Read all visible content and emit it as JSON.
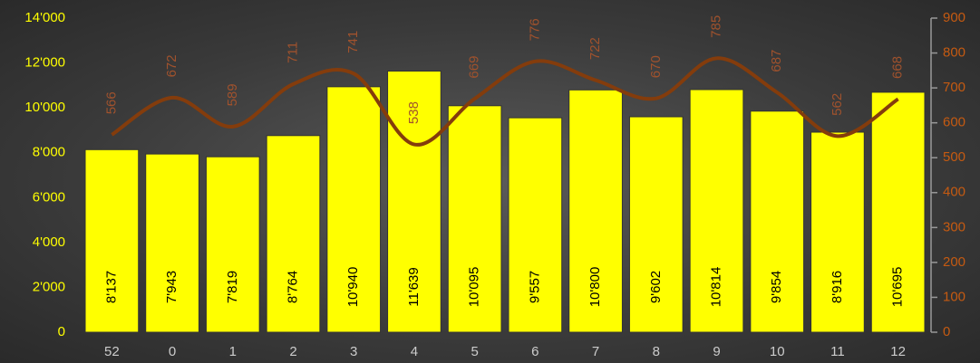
{
  "chart_data": {
    "type": "bar_line",
    "categories": [
      "52",
      "0",
      "1",
      "2",
      "3",
      "4",
      "5",
      "6",
      "7",
      "8",
      "9",
      "10",
      "11",
      "12"
    ],
    "series": [
      {
        "type": "bar",
        "color": "#ffff00",
        "values": [
          8137,
          7943,
          7819,
          8764,
          10940,
          11639,
          10095,
          9557,
          10800,
          9602,
          10814,
          9854,
          8916,
          10695
        ],
        "value_labels": [
          "8'137",
          "7'943",
          "7'819",
          "8'764",
          "10'940",
          "11'639",
          "10'095",
          "9'557",
          "10'800",
          "9'602",
          "10'814",
          "9'854",
          "8'916",
          "10'695"
        ]
      },
      {
        "type": "line",
        "axis": "y2",
        "color": "#843c0c",
        "values": [
          566,
          672,
          589,
          711,
          741,
          538,
          669,
          776,
          722,
          670,
          785,
          687,
          562,
          668
        ]
      }
    ],
    "ylim": [
      0,
      14000
    ],
    "yticks": [
      0,
      {
        "value": 2000,
        "label": "2'000"
      },
      {
        "value": 4000,
        "label": "4'000"
      },
      {
        "value": 6000,
        "label": "6'000"
      },
      {
        "value": 8000,
        "label": "8'000"
      },
      {
        "value": 10000,
        "label": "10'000"
      },
      {
        "value": 12000,
        "label": "12'000"
      },
      {
        "value": 14000,
        "label": "14'000"
      }
    ],
    "y2lim": [
      0,
      900
    ],
    "y2ticks": [
      0,
      100,
      200,
      300,
      400,
      500,
      600,
      700,
      800,
      900
    ]
  }
}
